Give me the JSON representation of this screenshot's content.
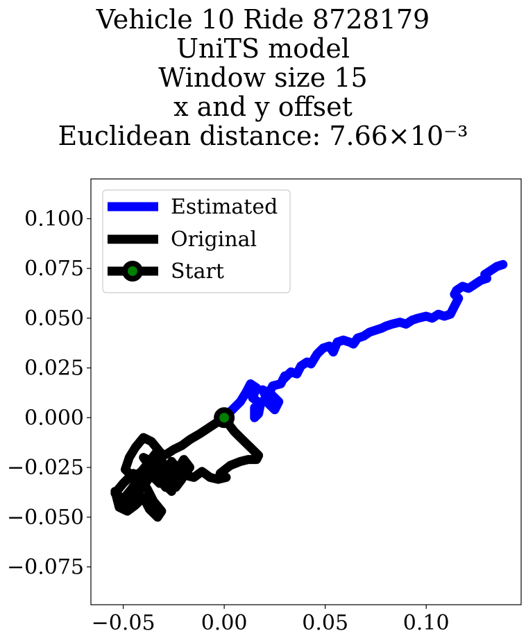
{
  "chart_data": {
    "type": "line",
    "title_lines": [
      "Vehicle 10 Ride 8728179",
      "UniTS model",
      "Window size 15",
      "x and y offset",
      "Euclidean distance: 7.66×10⁻³"
    ],
    "xlim": [
      -0.066,
      0.147
    ],
    "ylim": [
      -0.094,
      0.12
    ],
    "xticks": [
      -0.05,
      0.0,
      0.05,
      0.1
    ],
    "xtick_labels": [
      "−0.05",
      "0.00",
      "0.05",
      "0.10"
    ],
    "yticks": [
      0.1,
      0.075,
      0.05,
      0.025,
      0.0,
      -0.025,
      -0.05,
      -0.075
    ],
    "ytick_labels": [
      "0.100",
      "0.075",
      "0.050",
      "0.025",
      "0.000",
      "−0.025",
      "−0.050",
      "−0.075"
    ],
    "grid": false,
    "legend": {
      "placement": "upper-left",
      "entries": [
        "Estimated",
        "Original",
        "Start"
      ]
    },
    "colors": {
      "estimated": "#0000ff",
      "original": "#000000",
      "start_fill": "#007f00",
      "start_edge": "#000000"
    },
    "start": [
      0.0,
      0.0
    ],
    "series": [
      {
        "name": "Estimated",
        "x": [
          0.0,
          0.004,
          0.008,
          0.011,
          0.013,
          0.016,
          0.014,
          0.018,
          0.017,
          0.015,
          0.015,
          0.02,
          0.025,
          0.027,
          0.023,
          0.019,
          0.021,
          0.024,
          0.028,
          0.03,
          0.029,
          0.033,
          0.036,
          0.038,
          0.041,
          0.043,
          0.046,
          0.049,
          0.052,
          0.054,
          0.056,
          0.059,
          0.062,
          0.064,
          0.066,
          0.069,
          0.072,
          0.075,
          0.078,
          0.08,
          0.083,
          0.087,
          0.09,
          0.093,
          0.096,
          0.1,
          0.103,
          0.106,
          0.109,
          0.112,
          0.114,
          0.116,
          0.114,
          0.115,
          0.118,
          0.121,
          0.124,
          0.127,
          0.13,
          0.129,
          0.132,
          0.135,
          0.138
        ],
        "y": [
          0.0,
          0.004,
          0.008,
          0.013,
          0.017,
          0.015,
          0.01,
          0.007,
          0.002,
          0.0,
          0.005,
          0.009,
          0.004,
          0.008,
          0.012,
          0.014,
          0.01,
          0.016,
          0.017,
          0.021,
          0.019,
          0.023,
          0.022,
          0.026,
          0.028,
          0.027,
          0.032,
          0.035,
          0.036,
          0.033,
          0.038,
          0.039,
          0.038,
          0.037,
          0.04,
          0.041,
          0.043,
          0.044,
          0.045,
          0.046,
          0.047,
          0.048,
          0.047,
          0.049,
          0.05,
          0.051,
          0.05,
          0.052,
          0.051,
          0.052,
          0.056,
          0.06,
          0.062,
          0.064,
          0.066,
          0.065,
          0.067,
          0.069,
          0.07,
          0.072,
          0.074,
          0.076,
          0.077
        ]
      },
      {
        "name": "Original",
        "x": [
          0.0,
          -0.006,
          -0.012,
          -0.017,
          -0.021,
          -0.025,
          -0.028,
          -0.03,
          -0.032,
          -0.036,
          -0.04,
          -0.044,
          -0.047,
          -0.049,
          -0.045,
          -0.041,
          -0.037,
          -0.034,
          -0.03,
          -0.027,
          -0.024,
          -0.02,
          -0.017,
          -0.02,
          -0.023,
          -0.026,
          -0.029,
          -0.032,
          -0.035,
          -0.039,
          -0.043,
          -0.047,
          -0.051,
          -0.054,
          -0.052,
          -0.048,
          -0.044,
          -0.04,
          -0.037,
          -0.033,
          -0.031,
          -0.035,
          -0.038,
          -0.041,
          -0.045,
          -0.05,
          -0.054,
          -0.05,
          -0.046,
          -0.042,
          -0.038,
          -0.034,
          -0.031,
          -0.028,
          -0.026,
          -0.029,
          -0.033,
          -0.037,
          -0.04,
          -0.036,
          -0.032,
          -0.028,
          -0.024,
          -0.021,
          -0.023,
          -0.026,
          -0.029,
          -0.032,
          -0.035,
          -0.033,
          -0.03,
          -0.027,
          -0.023,
          -0.019,
          -0.015,
          -0.011,
          -0.007,
          -0.003,
          0.001,
          -0.002,
          0.003,
          0.008,
          0.012,
          0.016,
          0.017,
          0.013,
          0.009,
          0.005,
          0.002,
          0.0
        ],
        "y": [
          0.0,
          -0.004,
          -0.008,
          -0.011,
          -0.014,
          -0.016,
          -0.018,
          -0.019,
          -0.017,
          -0.012,
          -0.01,
          -0.015,
          -0.02,
          -0.026,
          -0.03,
          -0.027,
          -0.022,
          -0.018,
          -0.023,
          -0.028,
          -0.032,
          -0.029,
          -0.025,
          -0.021,
          -0.026,
          -0.031,
          -0.035,
          -0.031,
          -0.027,
          -0.033,
          -0.038,
          -0.043,
          -0.041,
          -0.037,
          -0.045,
          -0.047,
          -0.044,
          -0.04,
          -0.046,
          -0.05,
          -0.047,
          -0.042,
          -0.036,
          -0.031,
          -0.028,
          -0.033,
          -0.038,
          -0.041,
          -0.036,
          -0.03,
          -0.025,
          -0.021,
          -0.026,
          -0.032,
          -0.037,
          -0.034,
          -0.029,
          -0.024,
          -0.02,
          -0.022,
          -0.027,
          -0.032,
          -0.035,
          -0.031,
          -0.026,
          -0.022,
          -0.028,
          -0.033,
          -0.03,
          -0.025,
          -0.028,
          -0.031,
          -0.03,
          -0.029,
          -0.03,
          -0.027,
          -0.03,
          -0.031,
          -0.03,
          -0.028,
          -0.024,
          -0.022,
          -0.021,
          -0.021,
          -0.019,
          -0.015,
          -0.011,
          -0.007,
          -0.003,
          0.0
        ]
      }
    ]
  }
}
